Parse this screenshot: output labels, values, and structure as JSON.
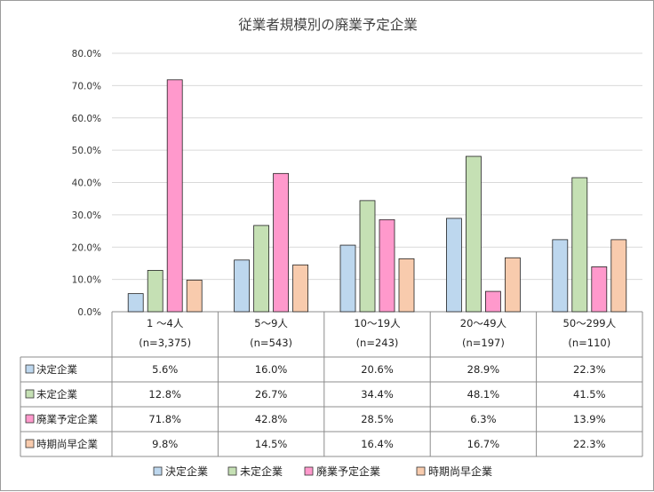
{
  "chart_data": {
    "type": "bar",
    "title": "従業者規模別の廃業予定企業",
    "categories": [
      "1 ～4人",
      "5～9人",
      "10～19人",
      "20～49人",
      "50～299人"
    ],
    "category_counts": [
      "(n=3,375)",
      "(n=543)",
      "(n=243)",
      "(n=197)",
      "(n=110)"
    ],
    "series": [
      {
        "name": "決定企業",
        "color": "#bdd7ee",
        "values": [
          5.6,
          16.0,
          20.6,
          28.9,
          22.3
        ],
        "labels": [
          "5.6%",
          "16.0%",
          "20.6%",
          "28.9%",
          "22.3%"
        ]
      },
      {
        "name": "未定企業",
        "color": "#c5e0b4",
        "values": [
          12.8,
          26.7,
          34.4,
          48.1,
          41.5
        ],
        "labels": [
          "12.8%",
          "26.7%",
          "34.4%",
          "48.1%",
          "41.5%"
        ]
      },
      {
        "name": "廃業予定企業",
        "color": "#ff99cc",
        "values": [
          71.8,
          42.8,
          28.5,
          6.3,
          13.9
        ],
        "labels": [
          "71.8%",
          "42.8%",
          "28.5%",
          "6.3%",
          "13.9%"
        ]
      },
      {
        "name": "時期尚早企業",
        "color": "#f8cbad",
        "values": [
          9.8,
          14.5,
          16.4,
          16.7,
          22.3
        ],
        "labels": [
          "9.8%",
          "14.5%",
          "16.4%",
          "16.7%",
          "22.3%"
        ]
      }
    ],
    "yticks": [
      "0.0%",
      "10.0%",
      "20.0%",
      "30.0%",
      "40.0%",
      "50.0%",
      "60.0%",
      "70.0%",
      "80.0%"
    ],
    "ylim": [
      0,
      80
    ],
    "grid": true,
    "legend_position": "bottom"
  }
}
